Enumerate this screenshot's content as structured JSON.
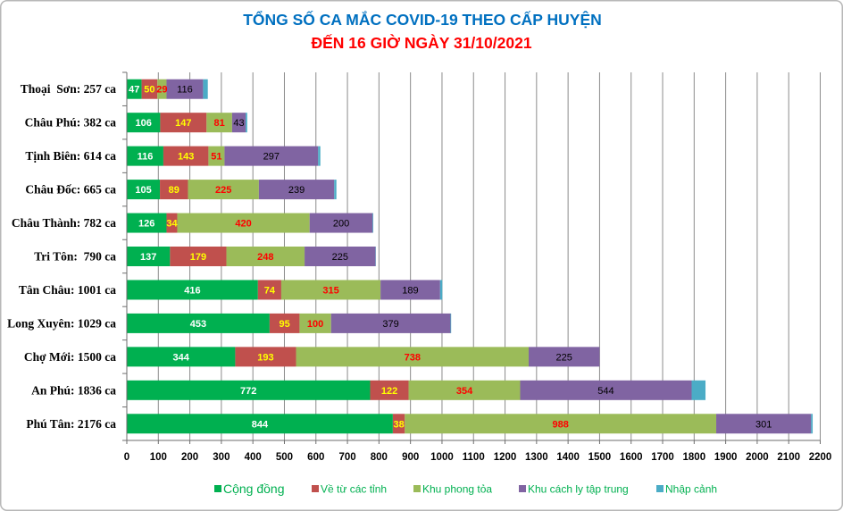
{
  "chart_data": {
    "type": "bar",
    "orientation": "horizontal",
    "stacked": true,
    "title": "TỔNG SỐ CA MẮC COVID-19 THEO CẤP HUYỆN",
    "subtitle": "ĐẾN 16 GIỜ NGÀY 31/10/2021",
    "categories": [
      "Thoại  Sơn: 257 ca",
      "Châu Phú: 382 ca",
      "Tịnh Biên: 614 ca",
      "Châu Đốc: 665 ca",
      "Châu Thành: 782 ca",
      "Tri Tôn:  790 ca",
      "Tân Châu: 1001 ca",
      "Long Xuyên: 1029 ca",
      "Chợ Mới: 1500 ca",
      "An Phú: 1836 ca",
      "Phú Tân: 2176 ca"
    ],
    "series": [
      {
        "name": "Cộng đồng",
        "color": "#00B050",
        "label_color": "#FFFFFF",
        "values": [
          47,
          106,
          116,
          105,
          126,
          137,
          416,
          453,
          344,
          772,
          844
        ]
      },
      {
        "name": "Về từ các tỉnh",
        "color": "#C0504D",
        "label_color": "#FFFF00",
        "values": [
          50,
          147,
          143,
          89,
          34,
          179,
          74,
          95,
          193,
          122,
          38
        ]
      },
      {
        "name": "Khu phong tỏa",
        "color": "#9BBB59",
        "label_color": "#FF0000",
        "values": [
          29,
          81,
          51,
          225,
          420,
          248,
          315,
          100,
          738,
          354,
          988
        ]
      },
      {
        "name": "Khu cách ly tập trung",
        "color": "#8064A2",
        "label_color": "#000000",
        "values": [
          116,
          43,
          297,
          239,
          200,
          225,
          189,
          379,
          225,
          544,
          301
        ]
      },
      {
        "name": "Nhập cảnh",
        "color": "#4BACC6",
        "data_labels": false,
        "values": [
          15,
          5,
          7,
          7,
          2,
          1,
          7,
          2,
          0,
          44,
          5
        ]
      }
    ],
    "xlim": [
      0,
      2200
    ],
    "xticks": [
      0,
      100,
      200,
      300,
      400,
      500,
      600,
      700,
      800,
      900,
      1000,
      1100,
      1200,
      1300,
      1400,
      1500,
      1600,
      1700,
      1800,
      1900,
      2000,
      2100,
      2200
    ],
    "grid": true,
    "legend_position": "bottom"
  },
  "colors": {
    "title": "#0070C0",
    "subtitle": "#FF0000",
    "legend_text": "#00B050"
  }
}
